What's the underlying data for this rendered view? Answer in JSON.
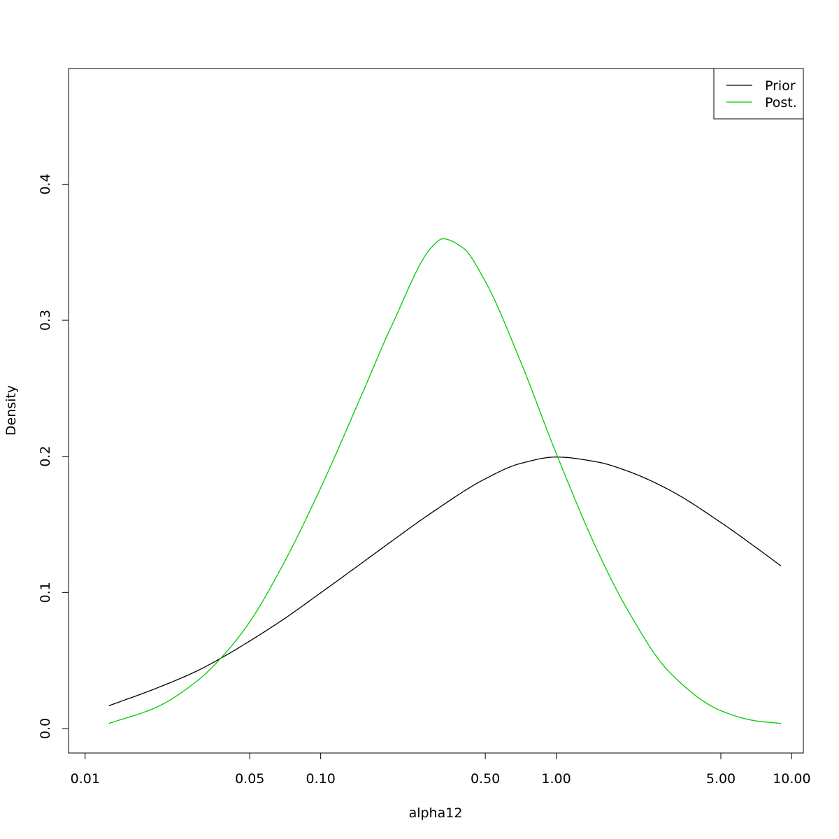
{
  "chart_data": {
    "type": "line",
    "title": "",
    "xlabel": "alpha12",
    "ylabel": "Density",
    "xscale": "log",
    "xlim": [
      0.0085,
      11.2
    ],
    "ylim": [
      -0.018,
      0.485
    ],
    "x_ticks": [
      {
        "value": 0.01,
        "label": "0.01"
      },
      {
        "value": 0.05,
        "label": "0.05"
      },
      {
        "value": 0.1,
        "label": "0.10"
      },
      {
        "value": 0.5,
        "label": "0.50"
      },
      {
        "value": 1.0,
        "label": "1.00"
      },
      {
        "value": 5.0,
        "label": "5.00"
      },
      {
        "value": 10.0,
        "label": "10.00"
      }
    ],
    "y_ticks": [
      {
        "value": 0.0,
        "label": "0.0"
      },
      {
        "value": 0.1,
        "label": "0.1"
      },
      {
        "value": 0.2,
        "label": "0.2"
      },
      {
        "value": 0.3,
        "label": "0.3"
      },
      {
        "value": 0.4,
        "label": "0.4"
      }
    ],
    "grid": false,
    "legend": {
      "position": "top-right",
      "entries": [
        {
          "label": "Prior",
          "color": "#000000"
        },
        {
          "label": "Post.",
          "color": "#00cc00"
        }
      ]
    },
    "series": [
      {
        "name": "Prior",
        "color": "#000000",
        "x": [
          0.0126,
          0.02,
          0.03,
          0.04,
          0.05,
          0.07,
          0.1,
          0.15,
          0.2,
          0.3,
          0.5,
          0.7,
          1.0,
          1.5,
          2.0,
          3.0,
          5.0,
          7.0,
          9.0
        ],
        "y": [
          0.0167,
          0.0295,
          0.0425,
          0.0542,
          0.0643,
          0.0806,
          0.0997,
          0.1218,
          0.1376,
          0.1593,
          0.1835,
          0.1946,
          0.1995,
          0.1958,
          0.1893,
          0.1756,
          0.1514,
          0.1334,
          0.1195
        ]
      },
      {
        "name": "Post.",
        "color": "#00cc00",
        "x": [
          0.0126,
          0.02,
          0.03,
          0.04,
          0.05,
          0.07,
          0.1,
          0.15,
          0.2,
          0.3,
          0.33,
          0.4,
          0.5,
          0.7,
          1.0,
          1.5,
          2.0,
          3.0,
          5.0,
          7.0,
          9.0
        ],
        "y": [
          0.0037,
          0.0155,
          0.0352,
          0.0567,
          0.0784,
          0.1221,
          0.1768,
          0.246,
          0.2958,
          0.3548,
          0.3599,
          0.3535,
          0.3285,
          0.2712,
          0.2022,
          0.1302,
          0.0878,
          0.0421,
          0.0131,
          0.0057,
          0.0037
        ]
      }
    ]
  }
}
